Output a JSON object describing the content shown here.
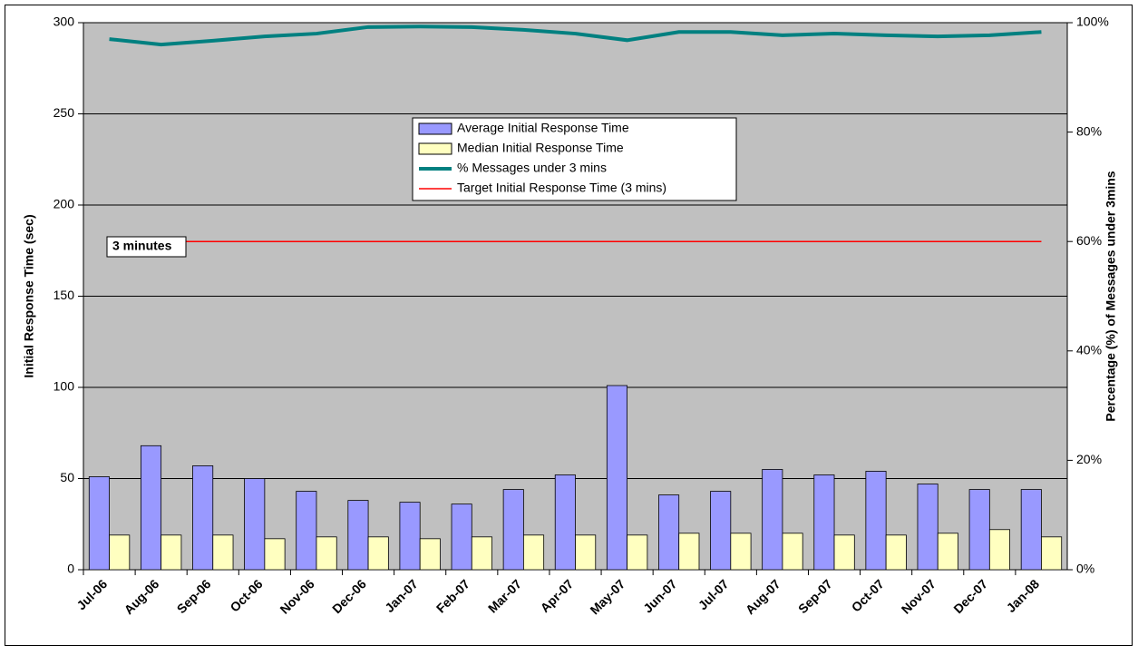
{
  "chart_data": {
    "type": "bar-line",
    "y_label": "Initial Response Time (sec)",
    "y2_label": "Percentage (%) of Messages under 3mins",
    "categories": [
      "Jul-06",
      "Aug-06",
      "Sep-06",
      "Oct-06",
      "Nov-06",
      "Dec-06",
      "Jan-07",
      "Feb-07",
      "Mar-07",
      "Apr-07",
      "May-07",
      "Jun-07",
      "Jul-07",
      "Aug-07",
      "Sep-07",
      "Oct-07",
      "Nov-07",
      "Dec-07",
      "Jan-08"
    ],
    "series": [
      {
        "name": "Average Initial Response Time",
        "type": "bar",
        "color": "#9999ff",
        "values": [
          51,
          68,
          57,
          50,
          43,
          38,
          37,
          36,
          44,
          52,
          101,
          41,
          43,
          55,
          52,
          54,
          47,
          44,
          44
        ]
      },
      {
        "name": "Median Initial Response Time",
        "type": "bar",
        "color": "#ffffc0",
        "values": [
          19,
          19,
          19,
          17,
          18,
          18,
          17,
          18,
          19,
          19,
          19,
          20,
          20,
          20,
          19,
          19,
          20,
          22,
          18
        ]
      },
      {
        "name": "% Messages under 3 mins",
        "type": "line",
        "axis": "y2",
        "color": "#008080",
        "values": [
          97.0,
          96.0,
          96.7,
          97.5,
          98.0,
          99.2,
          99.3,
          99.2,
          98.7,
          98.0,
          96.8,
          98.3,
          98.3,
          97.7,
          98.0,
          97.7,
          97.5,
          97.7,
          98.3
        ]
      },
      {
        "name": "Target Initial Response Time (3 mins)",
        "type": "line",
        "color": "#ff0000",
        "values": [
          180,
          180,
          180,
          180,
          180,
          180,
          180,
          180,
          180,
          180,
          180,
          180,
          180,
          180,
          180,
          180,
          180,
          180,
          180
        ]
      }
    ],
    "annotation": "3 minutes",
    "ylim": [
      0,
      300
    ],
    "yticks": [
      0,
      50,
      100,
      150,
      200,
      250,
      300
    ],
    "y2lim": [
      0,
      100
    ],
    "y2ticks": [
      {
        "value": 0,
        "label": "0%"
      },
      {
        "value": 20,
        "label": "20%"
      },
      {
        "value": 40,
        "label": "40%"
      },
      {
        "value": 60,
        "label": "60%"
      },
      {
        "value": 80,
        "label": "80%"
      },
      {
        "value": 100,
        "label": "100%"
      }
    ],
    "grid": true,
    "background": "#c0c0c0"
  }
}
